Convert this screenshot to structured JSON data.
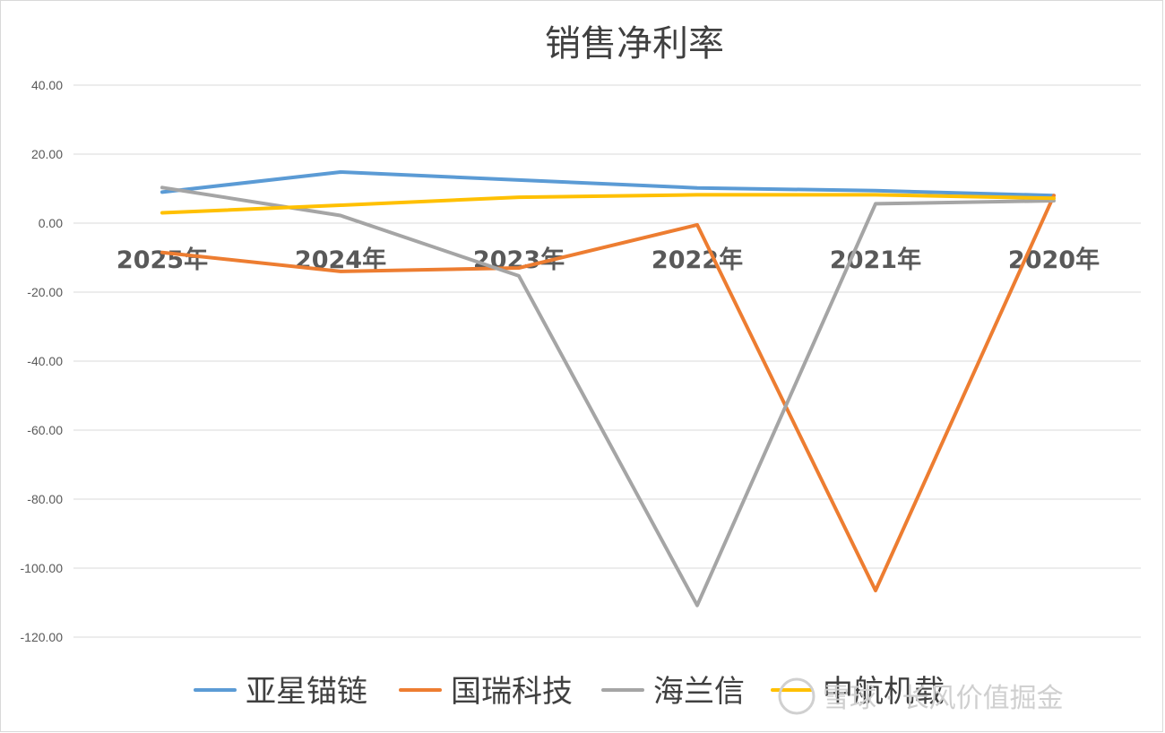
{
  "chart_data": {
    "type": "line",
    "title": "销售净利率",
    "categories": [
      "2025年",
      "2024年",
      "2023年",
      "2022年",
      "2021年",
      "2020年"
    ],
    "ylim": [
      -120,
      40
    ],
    "yticks": [
      40,
      20,
      0,
      -20,
      -40,
      -60,
      -80,
      -100,
      -120
    ],
    "ytick_labels": [
      "40.00",
      "20.00",
      "0.00",
      "-20.00",
      "-40.00",
      "-60.00",
      "-80.00",
      "-100.00",
      "-120.00"
    ],
    "grid": true,
    "legend_position": "bottom",
    "series": [
      {
        "name": "亚星锚链",
        "color": "#5B9BD5",
        "values": [
          9.0,
          14.8,
          12.5,
          10.2,
          9.4,
          8.0
        ]
      },
      {
        "name": "国瑞科技",
        "color": "#ED7D31",
        "values": [
          -8.5,
          -14.0,
          -13.0,
          -0.5,
          -106.5,
          8.0
        ]
      },
      {
        "name": "海兰信",
        "color": "#A5A5A5",
        "values": [
          10.3,
          2.2,
          -15.3,
          -110.8,
          5.6,
          6.5
        ]
      },
      {
        "name": "中航机载",
        "color": "#FFC000",
        "values": [
          3.0,
          5.2,
          7.5,
          8.2,
          8.2,
          7.2
        ]
      }
    ]
  },
  "watermark": {
    "text": "雪球 · 长风价值掘金"
  }
}
